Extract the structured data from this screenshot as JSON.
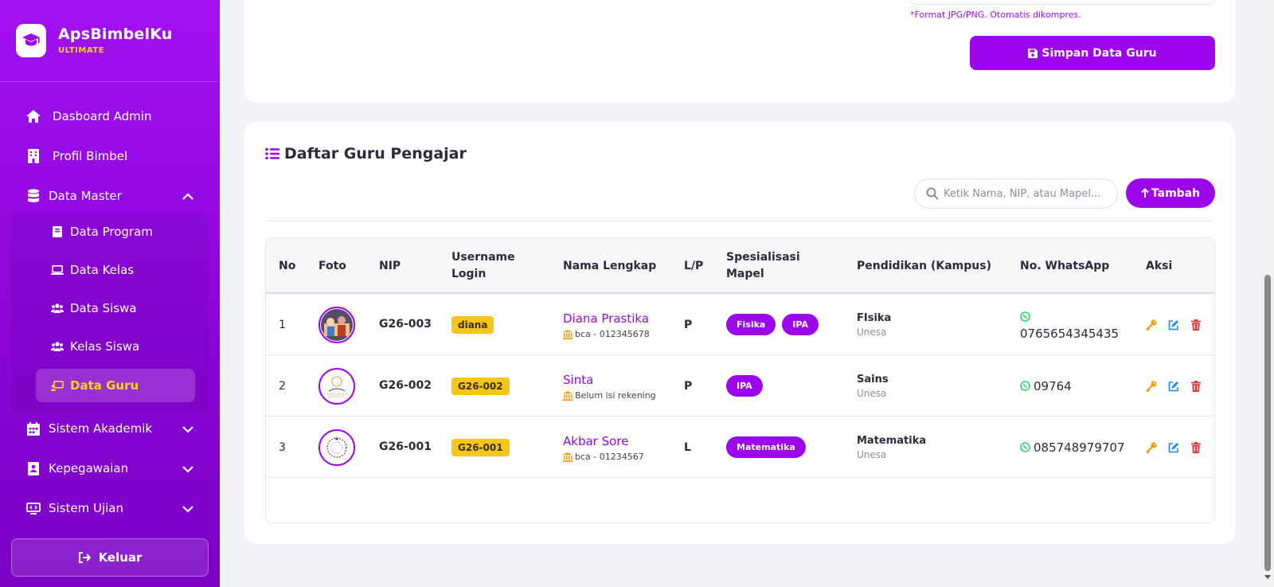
{
  "brand": {
    "name": "ApsBimbelKu",
    "tag": "ULTIMATE"
  },
  "sidebar": {
    "items": [
      {
        "label": "Dasboard Admin",
        "icon": "home-icon"
      },
      {
        "label": "Profil Bimbel",
        "icon": "building-icon"
      },
      {
        "label": "Data Master",
        "icon": "database-icon",
        "expanded": true
      },
      {
        "label": "Sistem Akademik",
        "icon": "calendar-icon"
      },
      {
        "label": "Kepegawaian",
        "icon": "id-card-icon"
      },
      {
        "label": "Sistem Ujian",
        "icon": "monitor-icon"
      }
    ],
    "sub_items": [
      {
        "label": "Data Program",
        "icon": "book-icon"
      },
      {
        "label": "Data Kelas",
        "icon": "laptop-icon"
      },
      {
        "label": "Data Siswa",
        "icon": "users-icon"
      },
      {
        "label": "Kelas Siswa",
        "icon": "users-icon"
      },
      {
        "label": "Data Guru",
        "icon": "chalkboard-teacher-icon",
        "active": true
      }
    ],
    "logout": "Keluar"
  },
  "form": {
    "hint": "*Format JPG/PNG. Otomatis dikompres.",
    "save_label": "Simpan Data Guru"
  },
  "list": {
    "title": "Daftar Guru Pengajar",
    "search_placeholder": "Ketik Nama, NIP, atau Mapel...",
    "add_label": "Tambah",
    "columns": [
      "No",
      "Foto",
      "NIP",
      "Username Login",
      "Nama Lengkap",
      "L/P",
      "Spesialisasi Mapel",
      "Pendidikan (Kampus)",
      "No. WhatsApp",
      "Aksi"
    ],
    "rows": [
      {
        "no": "1",
        "nip": "G26-003",
        "username": "diana",
        "nama": "Diana Prastika",
        "bank": "bca - 012345678",
        "lp": "P",
        "mapel": [
          "Fisika",
          "IPA"
        ],
        "pendidikan": "FIsika",
        "kampus": "Unesa",
        "wa": "0765654345435"
      },
      {
        "no": "2",
        "nip": "G26-002",
        "username": "G26-002",
        "nama": "Sinta",
        "bank": "Belum isi rekening",
        "lp": "P",
        "mapel": [
          "IPA"
        ],
        "pendidikan": "Sains",
        "kampus": "Unesa",
        "wa": "09764"
      },
      {
        "no": "3",
        "nip": "G26-001",
        "username": "G26-001",
        "nama": "Akbar Sore",
        "bank": "bca - 01234567",
        "lp": "L",
        "mapel": [
          "Matematika"
        ],
        "pendidikan": "Matematika",
        "kampus": "Unesa",
        "wa": "085748979707"
      }
    ]
  },
  "colors": {
    "primary": "#9b06ea",
    "accent": "#f5c518",
    "whatsapp": "#25d366",
    "edit": "#1e88e5",
    "delete": "#e53935",
    "key": "#f39c12"
  }
}
